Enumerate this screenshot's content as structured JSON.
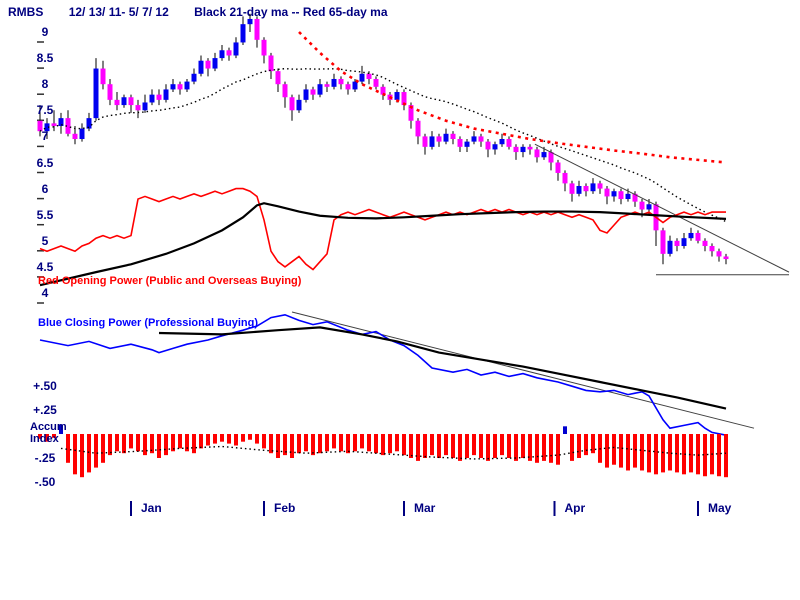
{
  "header": {
    "symbol": "RMBS",
    "range": "12/ 13/ 11- 5/ 7/ 12",
    "legend": "Black 21-day ma --  Red 65-day ma"
  },
  "annotations": {
    "opening_power": "Red Opening Power (Public and Overseas Buying)",
    "closing_power": "Blue Closing Power (Professional Buying)",
    "accum_line1": "Accum",
    "accum_line2": "Index"
  },
  "colors": {
    "up": "#0000F0",
    "down": "#FF00FF",
    "wick": "#000000",
    "ma21": "#000000",
    "ma65": "#FF0000",
    "opening_power": "#FF0000",
    "closing_power": "#0000FF",
    "power_ma": "#000000",
    "accum_neg": "#FF0000",
    "accum_pos": "#0000D0",
    "accum_dots": "#000000",
    "trendline": "#404040",
    "axis_text": "#000080",
    "tick_dash": "#303030"
  },
  "chart_data": {
    "type": "candlestick",
    "title": "RMBS 12/13/11 - 5/7/12",
    "ylabel": "Price",
    "legend": [
      "Black 21-day ma",
      "Red 65-day ma",
      "Red Opening Power",
      "Blue Closing Power",
      "Accum Index"
    ],
    "price_axis": {
      "min": 4,
      "max": 9,
      "ticks": [
        {
          "label": "9",
          "value": 9
        },
        {
          "label": "8.5",
          "value": 8.5
        },
        {
          "label": "8",
          "value": 8
        },
        {
          "label": "7.5",
          "value": 7.5
        },
        {
          "label": "7",
          "value": 7
        },
        {
          "label": "6.5",
          "value": 6.5
        },
        {
          "label": "6",
          "value": 6
        },
        {
          "label": "5.5",
          "value": 5.5
        },
        {
          "label": "5",
          "value": 5
        },
        {
          "label": "4.5",
          "value": 4.5
        },
        {
          "label": "4",
          "value": 4
        }
      ]
    },
    "x_axis": {
      "months": [
        {
          "label": "Jan",
          "day": 13
        },
        {
          "label": "Feb",
          "day": 32
        },
        {
          "label": "Mar",
          "day": 52
        },
        {
          "label": "Apr",
          "day": 73.5
        },
        {
          "label": "May",
          "day": 94
        }
      ]
    },
    "candles": [
      [
        7.3,
        7.6,
        7.0,
        7.1
      ],
      [
        7.1,
        7.35,
        6.95,
        7.25
      ],
      [
        7.25,
        7.5,
        7.1,
        7.2
      ],
      [
        7.2,
        7.45,
        7.05,
        7.35
      ],
      [
        7.35,
        7.5,
        7.0,
        7.05
      ],
      [
        7.05,
        7.2,
        6.85,
        6.95
      ],
      [
        6.95,
        7.25,
        6.9,
        7.15
      ],
      [
        7.15,
        7.45,
        7.1,
        7.35
      ],
      [
        7.35,
        8.5,
        7.3,
        8.3
      ],
      [
        8.3,
        8.45,
        7.9,
        8.0
      ],
      [
        8.0,
        8.1,
        7.6,
        7.7
      ],
      [
        7.7,
        7.85,
        7.5,
        7.6
      ],
      [
        7.6,
        7.8,
        7.55,
        7.75
      ],
      [
        7.75,
        7.8,
        7.45,
        7.6
      ],
      [
        7.6,
        7.7,
        7.35,
        7.5
      ],
      [
        7.5,
        7.8,
        7.45,
        7.65
      ],
      [
        7.65,
        7.9,
        7.6,
        7.8
      ],
      [
        7.8,
        7.9,
        7.6,
        7.7
      ],
      [
        7.7,
        8.0,
        7.65,
        7.9
      ],
      [
        7.9,
        8.1,
        7.85,
        8.0
      ],
      [
        8.0,
        8.05,
        7.8,
        7.9
      ],
      [
        7.9,
        8.1,
        7.85,
        8.05
      ],
      [
        8.05,
        8.3,
        8.0,
        8.2
      ],
      [
        8.2,
        8.55,
        8.15,
        8.45
      ],
      [
        8.45,
        8.5,
        8.15,
        8.3
      ],
      [
        8.3,
        8.6,
        8.25,
        8.5
      ],
      [
        8.5,
        8.75,
        8.45,
        8.65
      ],
      [
        8.65,
        8.7,
        8.45,
        8.55
      ],
      [
        8.55,
        8.9,
        8.5,
        8.8
      ],
      [
        8.8,
        9.3,
        8.75,
        9.15
      ],
      [
        9.15,
        9.35,
        9.0,
        9.25
      ],
      [
        9.25,
        9.3,
        8.7,
        8.85
      ],
      [
        8.85,
        8.9,
        8.4,
        8.55
      ],
      [
        8.55,
        8.6,
        8.1,
        8.25
      ],
      [
        8.25,
        8.3,
        7.85,
        8.0
      ],
      [
        8.0,
        8.05,
        7.55,
        7.75
      ],
      [
        7.75,
        7.8,
        7.3,
        7.5
      ],
      [
        7.5,
        7.8,
        7.45,
        7.7
      ],
      [
        7.7,
        8.0,
        7.65,
        7.9
      ],
      [
        7.9,
        7.95,
        7.7,
        7.8
      ],
      [
        7.8,
        8.1,
        7.75,
        8.0
      ],
      [
        8.0,
        8.05,
        7.85,
        7.95
      ],
      [
        7.95,
        8.2,
        7.9,
        8.1
      ],
      [
        8.1,
        8.15,
        7.9,
        8.0
      ],
      [
        8.0,
        8.05,
        7.8,
        7.9
      ],
      [
        7.9,
        8.1,
        7.85,
        8.05
      ],
      [
        8.05,
        8.35,
        8.0,
        8.2
      ],
      [
        8.2,
        8.25,
        8.0,
        8.1
      ],
      [
        8.1,
        8.15,
        7.9,
        7.95
      ],
      [
        7.95,
        8.0,
        7.7,
        7.8
      ],
      [
        7.8,
        7.85,
        7.6,
        7.7
      ],
      [
        7.7,
        7.9,
        7.65,
        7.85
      ],
      [
        7.85,
        7.9,
        7.5,
        7.6
      ],
      [
        7.6,
        7.65,
        7.15,
        7.3
      ],
      [
        7.3,
        7.35,
        6.85,
        7.0
      ],
      [
        7.0,
        7.05,
        6.65,
        6.8
      ],
      [
        6.8,
        7.1,
        6.75,
        7.0
      ],
      [
        7.0,
        7.05,
        6.8,
        6.9
      ],
      [
        6.9,
        7.15,
        6.85,
        7.05
      ],
      [
        7.05,
        7.1,
        6.85,
        6.95
      ],
      [
        6.95,
        7.0,
        6.7,
        6.8
      ],
      [
        6.8,
        6.95,
        6.7,
        6.9
      ],
      [
        6.9,
        7.1,
        6.85,
        7.0
      ],
      [
        7.0,
        7.05,
        6.8,
        6.9
      ],
      [
        6.9,
        6.95,
        6.6,
        6.75
      ],
      [
        6.75,
        6.9,
        6.65,
        6.85
      ],
      [
        6.85,
        7.05,
        6.8,
        6.95
      ],
      [
        6.95,
        7.0,
        6.75,
        6.8
      ],
      [
        6.8,
        6.85,
        6.55,
        6.7
      ],
      [
        6.7,
        6.85,
        6.6,
        6.8
      ],
      [
        6.8,
        6.85,
        6.65,
        6.75
      ],
      [
        6.75,
        6.8,
        6.5,
        6.6
      ],
      [
        6.6,
        6.8,
        6.55,
        6.7
      ],
      [
        6.7,
        6.75,
        6.35,
        6.5
      ],
      [
        6.5,
        6.55,
        6.15,
        6.3
      ],
      [
        6.3,
        6.35,
        5.95,
        6.1
      ],
      [
        6.1,
        6.15,
        5.75,
        5.9
      ],
      [
        5.9,
        6.15,
        5.85,
        6.05
      ],
      [
        6.05,
        6.1,
        5.85,
        5.95
      ],
      [
        5.95,
        6.2,
        5.9,
        6.1
      ],
      [
        6.1,
        6.15,
        5.9,
        6.0
      ],
      [
        6.0,
        6.05,
        5.7,
        5.85
      ],
      [
        5.85,
        6.0,
        5.75,
        5.95
      ],
      [
        5.95,
        6.0,
        5.7,
        5.8
      ],
      [
        5.8,
        6.0,
        5.75,
        5.9
      ],
      [
        5.9,
        5.95,
        5.65,
        5.75
      ],
      [
        5.75,
        5.8,
        5.45,
        5.6
      ],
      [
        5.6,
        5.8,
        5.5,
        5.7
      ],
      [
        5.7,
        5.75,
        4.9,
        5.2
      ],
      [
        5.2,
        5.25,
        4.55,
        4.75
      ],
      [
        4.75,
        5.1,
        4.7,
        5.0
      ],
      [
        5.0,
        5.05,
        4.8,
        4.9
      ],
      [
        4.9,
        5.15,
        4.85,
        5.05
      ],
      [
        5.05,
        5.25,
        5.0,
        5.15
      ],
      [
        5.15,
        5.2,
        4.95,
        5.0
      ],
      [
        5.0,
        5.05,
        4.8,
        4.9
      ],
      [
        4.9,
        4.95,
        4.7,
        4.8
      ],
      [
        4.8,
        4.85,
        4.6,
        4.7
      ],
      [
        4.7,
        4.75,
        4.55,
        4.65
      ]
    ],
    "ma65_points": [
      [
        37,
        9.0
      ],
      [
        40,
        8.6
      ],
      [
        43,
        8.25
      ],
      [
        46,
        8.0
      ],
      [
        50,
        7.75
      ],
      [
        54,
        7.5
      ],
      [
        58,
        7.3
      ],
      [
        62,
        7.15
      ],
      [
        66,
        7.05
      ],
      [
        70,
        6.95
      ],
      [
        74,
        6.87
      ],
      [
        78,
        6.8
      ],
      [
        82,
        6.73
      ],
      [
        86,
        6.67
      ],
      [
        90,
        6.6
      ],
      [
        94,
        6.55
      ],
      [
        98,
        6.5
      ]
    ],
    "opening_power": [
      4.85,
      4.8,
      4.85,
      4.9,
      4.85,
      4.8,
      4.9,
      4.95,
      5.05,
      5.1,
      5.05,
      5.1,
      5.05,
      5.1,
      5.8,
      5.85,
      5.8,
      5.75,
      5.8,
      5.85,
      5.8,
      5.85,
      5.9,
      5.85,
      5.9,
      5.95,
      5.9,
      5.95,
      6.0,
      6.0,
      5.95,
      5.85,
      5.4,
      4.8,
      4.6,
      4.5,
      4.6,
      4.7,
      4.55,
      4.45,
      4.6,
      4.75,
      5.4,
      5.5,
      5.55,
      5.5,
      5.55,
      5.6,
      5.55,
      5.5,
      5.45,
      5.5,
      5.55,
      5.5,
      5.45,
      5.4,
      5.45,
      5.5,
      5.55,
      5.5,
      5.55,
      5.5,
      5.55,
      5.6,
      5.55,
      5.6,
      5.55,
      5.6,
      5.55,
      5.5,
      5.55,
      5.5,
      5.55,
      5.5,
      5.55,
      5.5,
      5.45,
      5.5,
      5.45,
      5.4,
      5.2,
      5.15,
      5.3,
      5.45,
      5.5,
      5.55,
      5.5,
      5.55,
      5.45,
      5.35,
      5.45,
      5.5,
      5.55,
      5.5,
      5.55,
      5.5,
      5.55,
      5.55,
      5.55
    ],
    "op_ma_points": [
      [
        0,
        4.15
      ],
      [
        8,
        4.4
      ],
      [
        13,
        4.55
      ],
      [
        18,
        4.75
      ],
      [
        22,
        4.95
      ],
      [
        26,
        5.2
      ],
      [
        29,
        5.45
      ],
      [
        31,
        5.68
      ],
      [
        32,
        5.72
      ],
      [
        34,
        5.66
      ],
      [
        37,
        5.56
      ],
      [
        40,
        5.48
      ],
      [
        44,
        5.44
      ],
      [
        48,
        5.43
      ],
      [
        52,
        5.45
      ],
      [
        56,
        5.48
      ],
      [
        60,
        5.51
      ],
      [
        64,
        5.53
      ],
      [
        68,
        5.55
      ],
      [
        72,
        5.56
      ],
      [
        76,
        5.56
      ],
      [
        80,
        5.55
      ],
      [
        84,
        5.52
      ],
      [
        88,
        5.49
      ],
      [
        92,
        5.46
      ],
      [
        98,
        5.42
      ]
    ],
    "closing_power_points": [
      [
        0,
        75
      ],
      [
        4,
        71
      ],
      [
        7,
        74
      ],
      [
        10,
        69
      ],
      [
        13,
        72
      ],
      [
        16,
        68
      ],
      [
        17,
        66
      ],
      [
        19,
        69
      ],
      [
        21,
        72
      ],
      [
        24,
        75
      ],
      [
        26,
        78
      ],
      [
        29,
        82
      ],
      [
        31,
        85
      ],
      [
        33,
        91
      ],
      [
        35,
        93
      ],
      [
        37,
        89
      ],
      [
        39,
        86
      ],
      [
        41,
        88
      ],
      [
        44,
        82
      ],
      [
        46,
        79
      ],
      [
        48,
        81
      ],
      [
        50,
        75
      ],
      [
        52,
        71
      ],
      [
        54,
        64
      ],
      [
        56,
        55
      ],
      [
        59,
        52
      ],
      [
        61,
        54
      ],
      [
        63,
        50
      ],
      [
        65,
        52
      ],
      [
        67,
        49
      ],
      [
        69,
        51
      ],
      [
        71,
        48
      ],
      [
        74,
        45
      ],
      [
        76,
        42
      ],
      [
        78,
        39
      ],
      [
        80,
        38
      ],
      [
        82,
        39
      ],
      [
        84,
        36
      ],
      [
        86,
        38
      ],
      [
        87,
        35
      ],
      [
        89,
        18
      ],
      [
        90,
        12
      ],
      [
        92,
        14
      ],
      [
        94,
        16
      ],
      [
        95,
        12
      ],
      [
        96,
        9
      ],
      [
        98,
        7
      ]
    ],
    "cp_ma_points": [
      [
        17,
        80
      ],
      [
        26,
        79
      ],
      [
        34,
        82
      ],
      [
        40,
        84
      ],
      [
        46,
        79
      ],
      [
        51,
        74
      ],
      [
        57,
        66
      ],
      [
        63,
        61
      ],
      [
        69,
        56
      ],
      [
        74,
        51
      ],
      [
        80,
        45
      ],
      [
        86,
        39
      ],
      [
        91,
        34
      ],
      [
        98,
        26
      ]
    ],
    "trendlines": {
      "price_down": [
        70.7,
        6.85,
        107,
        4.4
      ],
      "price_support": [
        88,
        4.35,
        107,
        4.35
      ],
      "cp_down": [
        36,
        95,
        102,
        12
      ]
    },
    "accum": {
      "ticks": [
        {
          "label": "+.50",
          "value": 0.5
        },
        {
          "label": "+.25",
          "value": 0.25
        },
        {
          "label": "-.25",
          "value": -0.25
        },
        {
          "label": "-.50",
          "value": -0.5
        }
      ],
      "values": [
        -0.05,
        -0.08,
        -0.04,
        0.1,
        -0.3,
        -0.42,
        -0.45,
        -0.4,
        -0.35,
        -0.3,
        -0.22,
        -0.18,
        -0.2,
        -0.15,
        -0.18,
        -0.22,
        -0.2,
        -0.25,
        -0.22,
        -0.18,
        -0.15,
        -0.18,
        -0.2,
        -0.15,
        -0.12,
        -0.1,
        -0.08,
        -0.1,
        -0.12,
        -0.08,
        -0.06,
        -0.1,
        -0.15,
        -0.2,
        -0.25,
        -0.22,
        -0.25,
        -0.2,
        -0.18,
        -0.22,
        -0.2,
        -0.18,
        -0.15,
        -0.18,
        -0.2,
        -0.18,
        -0.15,
        -0.18,
        -0.2,
        -0.22,
        -0.2,
        -0.18,
        -0.22,
        -0.25,
        -0.28,
        -0.25,
        -0.22,
        -0.25,
        -0.22,
        -0.25,
        -0.28,
        -0.25,
        -0.22,
        -0.25,
        -0.28,
        -0.25,
        -0.22,
        -0.25,
        -0.28,
        -0.25,
        -0.28,
        -0.3,
        -0.28,
        -0.3,
        -0.32,
        0.08,
        -0.28,
        -0.25,
        -0.22,
        -0.2,
        -0.3,
        -0.35,
        -0.32,
        -0.35,
        -0.38,
        -0.35,
        -0.38,
        -0.4,
        -0.42,
        -0.4,
        -0.38,
        -0.4,
        -0.42,
        -0.4,
        -0.42,
        -0.44,
        -0.42,
        -0.44,
        -0.45
      ],
      "dotted_points": [
        [
          3,
          -0.15
        ],
        [
          8,
          -0.2
        ],
        [
          14,
          -0.18
        ],
        [
          20,
          -0.15
        ],
        [
          26,
          -0.13
        ],
        [
          32,
          -0.17
        ],
        [
          38,
          -0.2
        ],
        [
          44,
          -0.18
        ],
        [
          50,
          -0.21
        ],
        [
          56,
          -0.24
        ],
        [
          62,
          -0.26
        ],
        [
          68,
          -0.25
        ],
        [
          74,
          -0.22
        ],
        [
          78,
          -0.17
        ],
        [
          82,
          -0.14
        ],
        [
          86,
          -0.17
        ],
        [
          90,
          -0.2
        ],
        [
          94,
          -0.22
        ],
        [
          98,
          -0.2
        ]
      ]
    }
  }
}
